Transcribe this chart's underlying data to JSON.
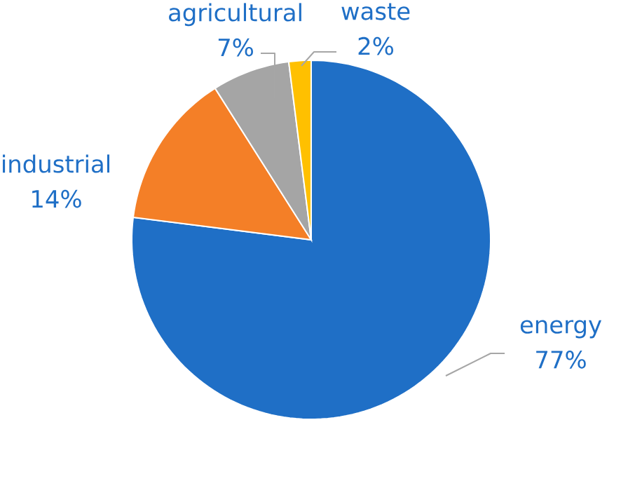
{
  "chart_data": {
    "type": "pie",
    "categories": [
      "energy",
      "industrial",
      "agricultural",
      "waste"
    ],
    "values": [
      77,
      14,
      7,
      2
    ],
    "value_labels": [
      "77%",
      "14%",
      "7%",
      "2%"
    ],
    "colors": [
      "#1f6fc6",
      "#f47f27",
      "#a5a5a5",
      "#ffc000"
    ]
  }
}
